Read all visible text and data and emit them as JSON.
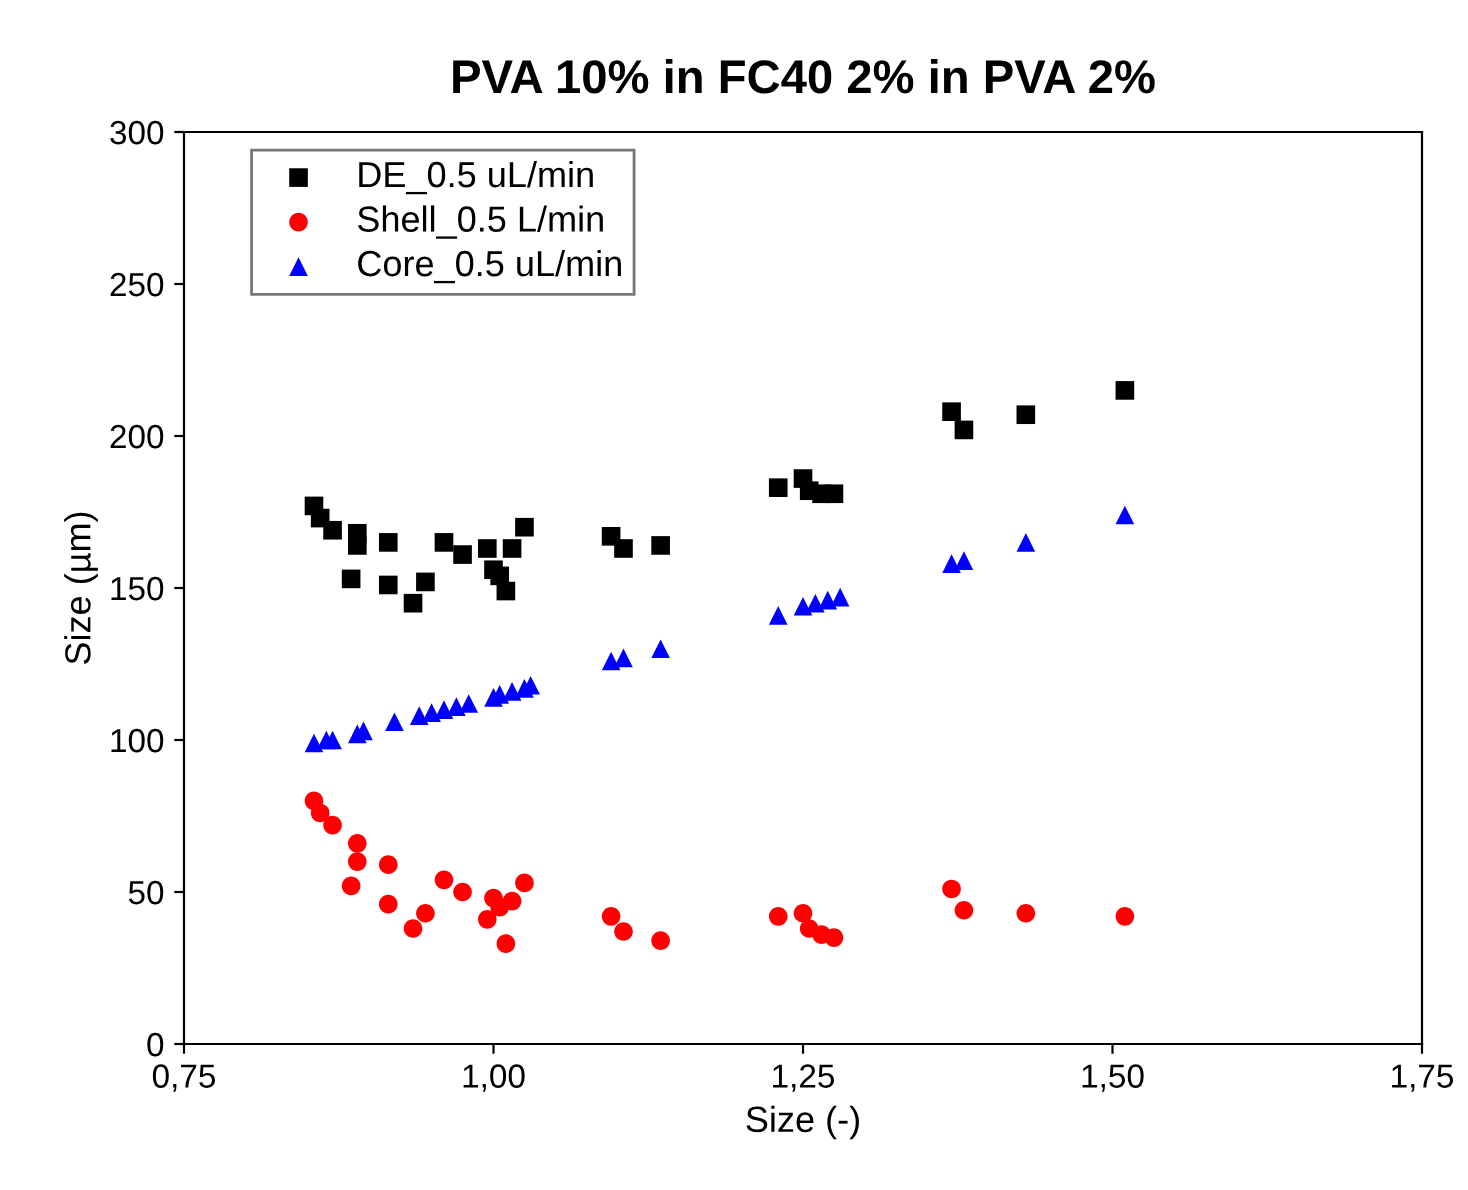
{
  "chart_data": {
    "type": "scatter",
    "title": "PVA 10% in FC40 2% in PVA 2%",
    "xlabel": "Size (-)",
    "ylabel": "Size (µm)",
    "xlim": [
      0.75,
      1.75
    ],
    "xticks": [
      {
        "value": 0.75,
        "label": "0,75"
      },
      {
        "value": 1.0,
        "label": "1,00"
      },
      {
        "value": 1.25,
        "label": "1,25"
      },
      {
        "value": 1.5,
        "label": "1,50"
      },
      {
        "value": 1.75,
        "label": "1,75"
      }
    ],
    "ylim": [
      0,
      300
    ],
    "yticks": [
      0,
      50,
      100,
      150,
      200,
      250,
      300
    ],
    "grid": false,
    "legend": "top left",
    "series": [
      {
        "name": "DE_0.5 uL/min",
        "color": "#000000",
        "marker": "square",
        "x": [
          0.855,
          0.86,
          0.87,
          0.885,
          0.89,
          0.89,
          0.915,
          0.915,
          0.935,
          0.945,
          0.96,
          0.975,
          0.995,
          1.0,
          1.005,
          1.01,
          1.015,
          1.025,
          1.095,
          1.105,
          1.135,
          1.23,
          1.25,
          1.255,
          1.265,
          1.275,
          1.37,
          1.38,
          1.43,
          1.51
        ],
        "values": [
          177,
          173,
          169,
          153,
          168,
          164,
          165,
          151,
          145,
          152,
          165,
          161,
          163,
          156,
          154,
          149,
          163,
          170,
          167,
          163,
          164,
          183,
          186,
          182,
          181,
          181,
          208,
          202,
          207,
          215
        ]
      },
      {
        "name": "Shell_0.5 L/min",
        "color": "#ff0000",
        "marker": "circle",
        "x": [
          0.855,
          0.86,
          0.87,
          0.885,
          0.89,
          0.89,
          0.915,
          0.915,
          0.935,
          0.945,
          0.96,
          0.975,
          0.995,
          1.0,
          1.005,
          1.01,
          1.015,
          1.025,
          1.095,
          1.105,
          1.135,
          1.23,
          1.25,
          1.255,
          1.265,
          1.275,
          1.37,
          1.38,
          1.43,
          1.51
        ],
        "values": [
          80,
          76,
          72,
          52,
          66,
          60,
          59,
          46,
          38,
          43,
          54,
          50,
          41,
          48,
          45,
          33,
          47,
          53,
          42,
          37,
          34,
          42,
          43,
          38,
          36,
          35,
          51,
          44,
          43,
          42
        ]
      },
      {
        "name": "Core_0.5 uL/min",
        "color": "#0000ff",
        "marker": "triangle",
        "x": [
          0.855,
          0.865,
          0.87,
          0.89,
          0.895,
          0.92,
          0.94,
          0.95,
          0.96,
          0.97,
          0.98,
          1.0,
          1.005,
          1.015,
          1.025,
          1.03,
          1.095,
          1.105,
          1.135,
          1.23,
          1.25,
          1.26,
          1.27,
          1.28,
          1.37,
          1.38,
          1.43,
          1.51
        ],
        "values": [
          99,
          100,
          100,
          102,
          103,
          106,
          108,
          109,
          110,
          111,
          112,
          114,
          115,
          116,
          117,
          118,
          126,
          127,
          130,
          141,
          144,
          145,
          146,
          147,
          158,
          159,
          165,
          174
        ]
      }
    ]
  }
}
